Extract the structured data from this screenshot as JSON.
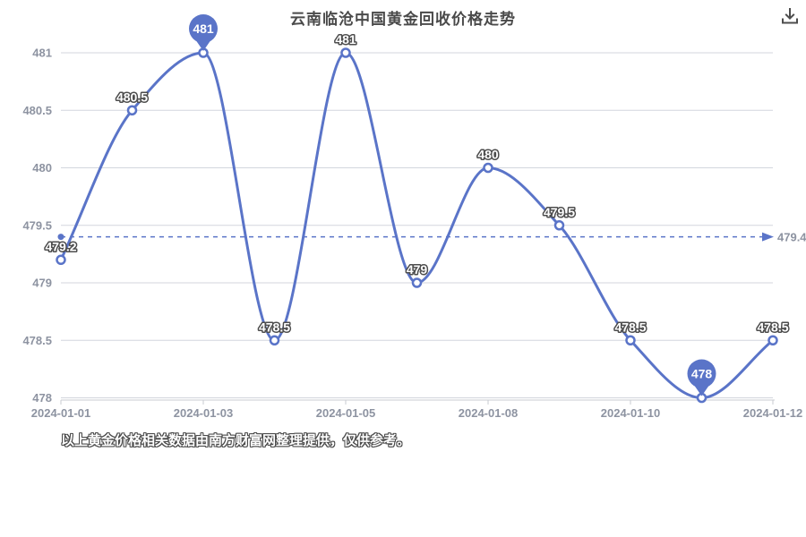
{
  "header": {
    "download_icon": "download"
  },
  "chart_data": {
    "type": "line",
    "title": "云南临沧中国黄金回收价格走势",
    "x_tick_labels": [
      "2024-01-01",
      "2024-01-03",
      "2024-01-05",
      "2024-01-08",
      "2024-01-10",
      "2024-01-12"
    ],
    "x_tick_indices": [
      0,
      2,
      4,
      6,
      8,
      10
    ],
    "values": [
      479.2,
      480.5,
      481,
      478.5,
      481,
      479,
      480,
      479.5,
      478.5,
      478,
      478.5
    ],
    "point_labels": [
      "479.2",
      "480.5",
      "481",
      "478.5",
      "481",
      "479",
      "480",
      "479.5",
      "478.5",
      "478",
      "478.5"
    ],
    "y_tick_labels": [
      "481",
      "480.5",
      "480",
      "479.5",
      "479",
      "478.5",
      "478"
    ],
    "y_tick_values": [
      481,
      480.5,
      480,
      479.5,
      479,
      478.5,
      478
    ],
    "ylim": [
      478,
      481
    ],
    "xlabel": "",
    "ylabel": "",
    "grid": true,
    "legend": false,
    "smooth": true,
    "mark_line": {
      "value": 479.4,
      "label": "479.4"
    },
    "mark_points": [
      {
        "index": 2,
        "label": "481",
        "kind": "max"
      },
      {
        "index": 9,
        "label": "478",
        "kind": "min"
      }
    ],
    "colors": {
      "line": "#5a74c8",
      "marker_fill": "#ffffff",
      "pin_fill": "#5a74c8",
      "pin_text": "#ffffff",
      "grid_line": "#d3d6dd",
      "axis_line": "#c8cbd2",
      "axis_text": "#8d93a1",
      "point_label_text": "#ffffff",
      "point_label_outline": "#4d4d4d",
      "title_text": "#4a4a4a",
      "icon": "#4d4d4d"
    }
  },
  "footnote": "以上黄金价格相关数据由南方财富网整理提供，仅供参考。"
}
